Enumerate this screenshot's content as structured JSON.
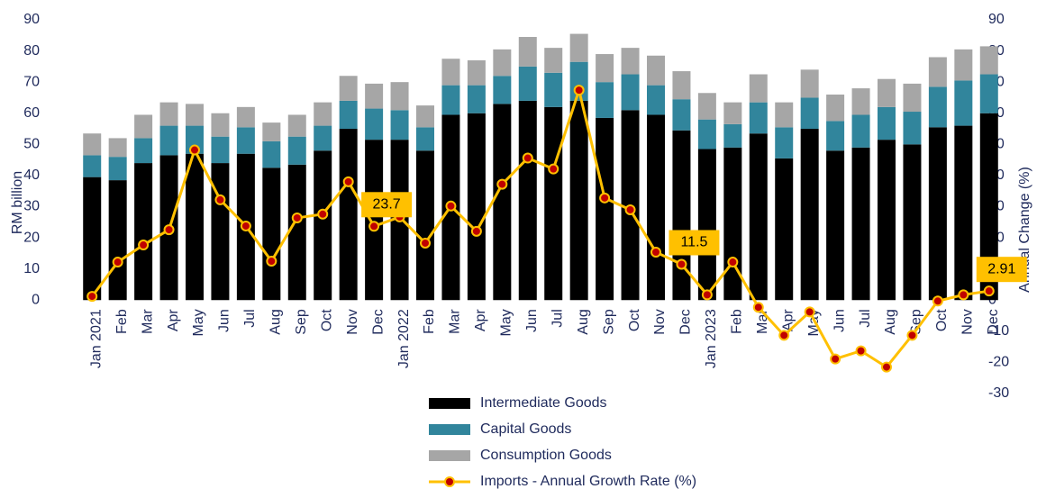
{
  "chart_data": {
    "type": "stacked_bar_line",
    "y_label": "RM billion",
    "y2_label": "Annual Change (%)",
    "categories": [
      "Jan 2021",
      "Feb",
      "Mar",
      "Apr",
      "May",
      "Jun",
      "Jul",
      "Aug",
      "Sep",
      "Oct",
      "Nov",
      "Dec",
      "Jan 2022",
      "Feb",
      "Mar",
      "Apr",
      "May",
      "Jun",
      "Jul",
      "Aug",
      "Sep",
      "Oct",
      "Nov",
      "Dec",
      "Jan 2023",
      "Feb",
      "Mar",
      "Apr",
      "May",
      "Jun",
      "Jul",
      "Aug",
      "Sep",
      "Oct",
      "Nov",
      "Dec"
    ],
    "series": [
      {
        "name": "Intermediate Goods",
        "color": "#000000",
        "values": [
          39.5,
          38.5,
          44,
          46.5,
          47,
          44,
          47,
          42.5,
          43.5,
          48,
          55,
          51.5,
          51.5,
          48,
          59.5,
          60,
          63,
          64,
          62,
          64,
          58.5,
          61,
          59.5,
          54.5,
          48.5,
          49,
          53.5,
          45.5,
          55,
          48,
          49,
          51.5,
          50,
          55.5,
          56,
          60
        ]
      },
      {
        "name": "Capital Goods",
        "color": "#31859c",
        "values": [
          7,
          7.5,
          8,
          9.5,
          9,
          8.5,
          8.5,
          8.5,
          9,
          8,
          9,
          10,
          9.5,
          7.5,
          9.5,
          9,
          9,
          11,
          11,
          12.5,
          11.5,
          11.5,
          9.5,
          10,
          9.5,
          7.5,
          10,
          10,
          10,
          9.5,
          10.5,
          10.5,
          10.5,
          13,
          14.5,
          12.5
        ]
      },
      {
        "name": "Consumption Goods",
        "color": "#a6a6a6",
        "values": [
          7,
          6,
          7.5,
          7.5,
          7,
          7.5,
          6.5,
          6,
          7,
          7.5,
          8,
          8,
          9,
          7,
          8.5,
          8,
          8.5,
          9.5,
          8,
          9,
          9,
          8.5,
          9.5,
          9,
          8.5,
          7,
          9,
          8,
          9,
          8.5,
          8.5,
          9,
          9,
          9.5,
          10,
          9
        ]
      },
      {
        "name": "Imports - Annual Growth Rate (%)",
        "color": "#ffc000",
        "marker_color": "#c00000",
        "axis": "y2",
        "values": [
          1.2,
          12.2,
          17.7,
          22.6,
          48.2,
          32.2,
          23.8,
          12.5,
          26.4,
          27.6,
          38,
          23.7,
          26.7,
          18.3,
          30.2,
          22.1,
          37.2,
          45.6,
          42.1,
          67.4,
          32.8,
          29,
          15.4,
          11.5,
          1.7,
          12.2,
          -2.3,
          -11.3,
          -3.8,
          -18.9,
          -16.3,
          -21.5,
          -11.3,
          -0.3,
          1.7,
          2.91
        ],
        "value_labels": [
          null,
          null,
          null,
          null,
          null,
          null,
          null,
          null,
          null,
          null,
          null,
          "23.7",
          null,
          null,
          null,
          null,
          null,
          null,
          null,
          null,
          null,
          null,
          null,
          "11.5",
          null,
          null,
          null,
          null,
          null,
          null,
          null,
          null,
          null,
          null,
          null,
          "2.91"
        ]
      }
    ],
    "ylim": [
      -30,
      90
    ],
    "yticks": [
      0,
      10,
      20,
      30,
      40,
      50,
      60,
      70,
      80,
      90
    ],
    "y2lim": [
      -30,
      90
    ],
    "y2ticks": [
      -30,
      -20,
      -10,
      0,
      10,
      20,
      30,
      40,
      50,
      60,
      70,
      80,
      90
    ],
    "label_color": "#ffc000"
  }
}
